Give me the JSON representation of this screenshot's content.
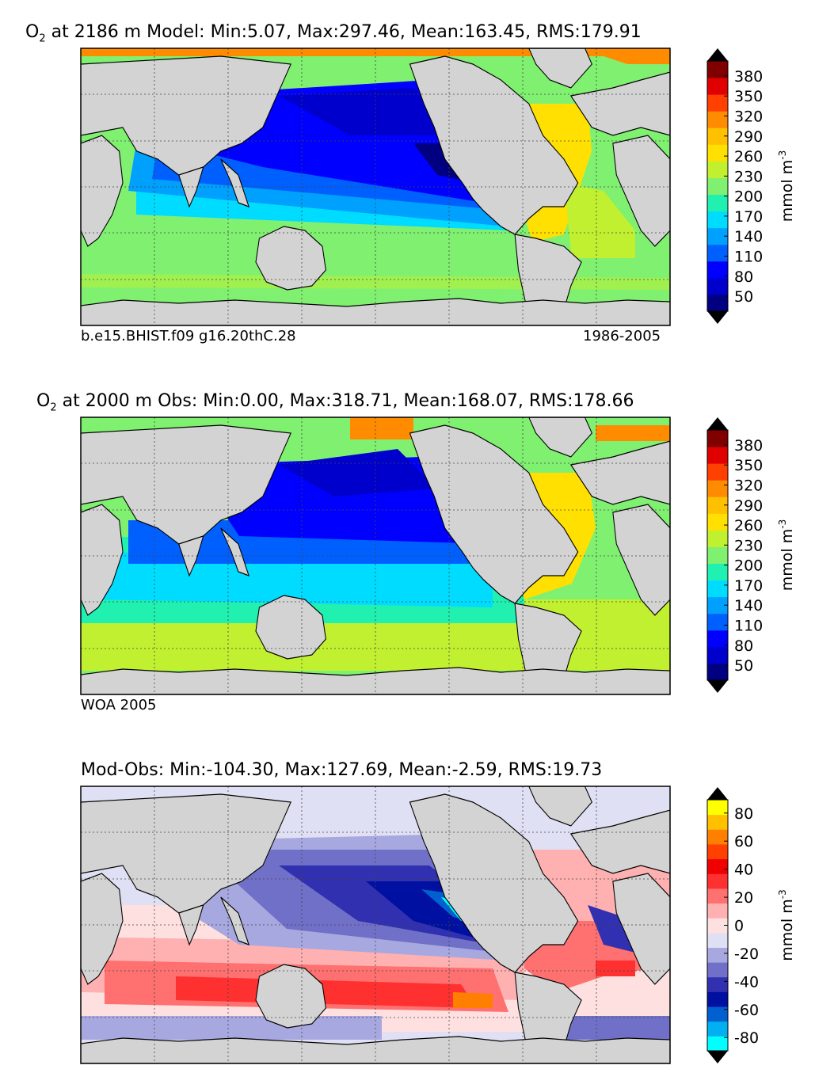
{
  "panels": [
    {
      "title_species": "O",
      "title_sub": "2",
      "title_rest": " at 2186 m Model: Min:5.07, Max:297.46, Mean:163.45, RMS:179.91",
      "footer_left": "b.e15.BHIST.f09 g16.20thC.28",
      "footer_right": "1986-2005",
      "colorbar": {
        "labels": [
          "380",
          "350",
          "320",
          "290",
          "260",
          "230",
          "200",
          "170",
          "140",
          "110",
          "80",
          "50"
        ],
        "unit": "mmol m",
        "unit_sup": "-3",
        "colors": [
          "#000080",
          "#0000cd",
          "#0000ff",
          "#0060ff",
          "#00a0ff",
          "#00dcff",
          "#20f0b0",
          "#80f070",
          "#c0f030",
          "#ffe000",
          "#ffc000",
          "#ff8c00",
          "#ff4000",
          "#e00000",
          "#800000"
        ],
        "under_color": "#000000",
        "over_color": "#000000"
      },
      "chart_data": {
        "type": "heatmap",
        "variable": "O2",
        "depth_m": 2186,
        "source": "Model",
        "stats": {
          "min": 5.07,
          "max": 297.46,
          "mean": 163.45,
          "rms": 179.91
        },
        "levels": [
          50,
          80,
          110,
          140,
          170,
          200,
          230,
          260,
          290,
          320,
          350,
          380
        ]
      }
    },
    {
      "title_species": "O",
      "title_sub": "2",
      "title_rest": " at 2000 m Obs: Min:0.00, Max:318.71, Mean:168.07, RMS:178.66",
      "footer_left": "WOA 2005",
      "footer_right": "",
      "colorbar": {
        "labels": [
          "380",
          "350",
          "320",
          "290",
          "260",
          "230",
          "200",
          "170",
          "140",
          "110",
          "80",
          "50"
        ],
        "unit": "mmol m",
        "unit_sup": "-3",
        "colors": [
          "#000080",
          "#0000cd",
          "#0000ff",
          "#0060ff",
          "#00a0ff",
          "#00dcff",
          "#20f0b0",
          "#80f070",
          "#c0f030",
          "#ffe000",
          "#ffc000",
          "#ff8c00",
          "#ff4000",
          "#e00000",
          "#800000"
        ],
        "under_color": "#000000",
        "over_color": "#000000"
      },
      "chart_data": {
        "type": "heatmap",
        "variable": "O2",
        "depth_m": 2000,
        "source": "Obs",
        "stats": {
          "min": 0.0,
          "max": 318.71,
          "mean": 168.07,
          "rms": 178.66
        },
        "levels": [
          50,
          80,
          110,
          140,
          170,
          200,
          230,
          260,
          290,
          320,
          350,
          380
        ]
      }
    },
    {
      "title_species": "",
      "title_sub": "",
      "title_rest": "Mod-Obs: Min:-104.30, Max:127.69, Mean:-2.59, RMS:19.73",
      "footer_left": "",
      "footer_right": "",
      "colorbar": {
        "labels": [
          "80",
          "60",
          "40",
          "20",
          "0",
          "-20",
          "-40",
          "-60",
          "-80"
        ],
        "unit": "mmol m",
        "unit_sup": "-3",
        "colors": [
          "#00ffff",
          "#00b0f0",
          "#0060d0",
          "#0010a0",
          "#3030b0",
          "#7070c8",
          "#a8a8e0",
          "#e0e0f4",
          "#ffe0e0",
          "#ffb0b0",
          "#ff7070",
          "#ff3030",
          "#f00000",
          "#ff4000",
          "#ff8000",
          "#ffc000",
          "#ffff00"
        ],
        "under_color": "#000000",
        "over_color": "#000000"
      },
      "chart_data": {
        "type": "heatmap",
        "variable": "O2 difference",
        "source": "Mod-Obs",
        "stats": {
          "min": -104.3,
          "max": 127.69,
          "mean": -2.59,
          "rms": 19.73
        },
        "levels": [
          -80,
          -70,
          -60,
          -50,
          -40,
          -30,
          -20,
          -10,
          0,
          10,
          20,
          30,
          40,
          50,
          60,
          70,
          80
        ]
      }
    }
  ]
}
